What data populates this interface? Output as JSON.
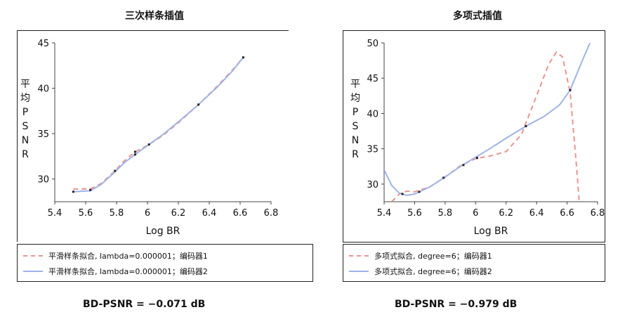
{
  "chart_data": [
    {
      "type": "line",
      "title": "三次样条插值",
      "xlabel": "Log BR",
      "ylabel": "平均PSNR",
      "xlim": [
        5.4,
        6.8
      ],
      "ylim": [
        27.5,
        45
      ],
      "xticks": [
        5.4,
        5.6,
        5.8,
        6.0,
        6.2,
        6.4,
        6.6,
        6.8
      ],
      "xtick_labels": [
        "5.4",
        "5.6",
        "5.8",
        "6",
        "6.2",
        "6.4",
        "6.6",
        "6.8"
      ],
      "yticks": [
        30,
        35,
        40,
        45
      ],
      "ytick_labels": [
        "30",
        "35",
        "40",
        "45"
      ],
      "points": [
        {
          "x": 5.52,
          "y": 28.6
        },
        {
          "x": 5.63,
          "y": 28.8
        },
        {
          "x": 5.79,
          "y": 30.9
        },
        {
          "x": 5.92,
          "y": 32.7
        },
        {
          "x": 5.92,
          "y": 33.0
        },
        {
          "x": 6.01,
          "y": 33.8
        },
        {
          "x": 6.33,
          "y": 38.2
        },
        {
          "x": 6.62,
          "y": 43.4
        }
      ],
      "series": [
        {
          "name": "平滑样条拟合, lambda=0.000001；编码器1",
          "color": "#e8948e",
          "dash": true,
          "x": [
            5.52,
            5.63,
            5.7,
            5.79,
            5.85,
            5.92,
            6.01,
            6.1,
            6.2,
            6.33,
            6.45,
            6.55,
            6.62
          ],
          "y": [
            28.9,
            28.9,
            29.5,
            30.9,
            32.0,
            33.0,
            33.8,
            34.8,
            36.2,
            38.2,
            40.2,
            42.0,
            43.4
          ]
        },
        {
          "name": "平滑样条拟合, lambda=0.000001；编码器2",
          "color": "#9fb3e8",
          "dash": false,
          "x": [
            5.52,
            5.63,
            5.7,
            5.79,
            5.85,
            5.92,
            6.01,
            6.1,
            6.2,
            6.33,
            6.45,
            6.55,
            6.62
          ],
          "y": [
            28.6,
            28.7,
            29.4,
            30.8,
            31.8,
            32.7,
            33.8,
            34.9,
            36.3,
            38.2,
            40.1,
            41.9,
            43.4
          ]
        }
      ],
      "bd_psnr": "BD-PSNR = −0.071 dB"
    },
    {
      "type": "line",
      "title": "多项式插值",
      "xlabel": "Log BR",
      "ylabel": "平均PSNR",
      "xlim": [
        5.4,
        6.8
      ],
      "ylim": [
        27.5,
        50
      ],
      "xticks": [
        5.4,
        5.6,
        5.8,
        6.0,
        6.2,
        6.4,
        6.6,
        6.8
      ],
      "xtick_labels": [
        "5.4",
        "5.6",
        "5.8",
        "6",
        "6.2",
        "6.4",
        "6.6",
        "6.8"
      ],
      "yticks": [
        30,
        35,
        40,
        45,
        50
      ],
      "ytick_labels": [
        "30",
        "35",
        "40",
        "45",
        "50"
      ],
      "points": [
        {
          "x": 5.52,
          "y": 28.6
        },
        {
          "x": 5.63,
          "y": 28.9
        },
        {
          "x": 5.79,
          "y": 30.9
        },
        {
          "x": 5.92,
          "y": 32.7
        },
        {
          "x": 6.01,
          "y": 33.7
        },
        {
          "x": 6.33,
          "y": 38.2
        },
        {
          "x": 6.62,
          "y": 43.3
        }
      ],
      "series": [
        {
          "name": "多项式拟合, degree=6；编码器1",
          "color": "#e8948e",
          "dash": true,
          "x": [
            5.45,
            5.5,
            5.55,
            5.6,
            5.7,
            5.8,
            5.9,
            6.0,
            6.1,
            6.2,
            6.3,
            6.4,
            6.48,
            6.53,
            6.57,
            6.62,
            6.66,
            6.68
          ],
          "y": [
            27.5,
            28.6,
            29.0,
            28.9,
            29.6,
            31.0,
            32.6,
            33.6,
            34.0,
            34.6,
            37.0,
            42.5,
            47.0,
            48.7,
            48.0,
            43.0,
            33.0,
            27.5
          ]
        },
        {
          "name": "多项式拟合, degree=6；编码器2",
          "color": "#9fb3e8",
          "dash": false,
          "x": [
            5.4,
            5.45,
            5.5,
            5.55,
            5.6,
            5.7,
            5.8,
            5.9,
            6.0,
            6.1,
            6.2,
            6.33,
            6.45,
            6.55,
            6.62,
            6.7,
            6.75
          ],
          "y": [
            32.0,
            29.8,
            28.7,
            28.4,
            28.6,
            29.6,
            31.0,
            32.5,
            33.8,
            35.1,
            36.5,
            38.2,
            39.6,
            41.2,
            43.3,
            47.5,
            50.0
          ]
        }
      ],
      "bd_psnr": "BD-PSNR = −0.979 dB"
    }
  ]
}
